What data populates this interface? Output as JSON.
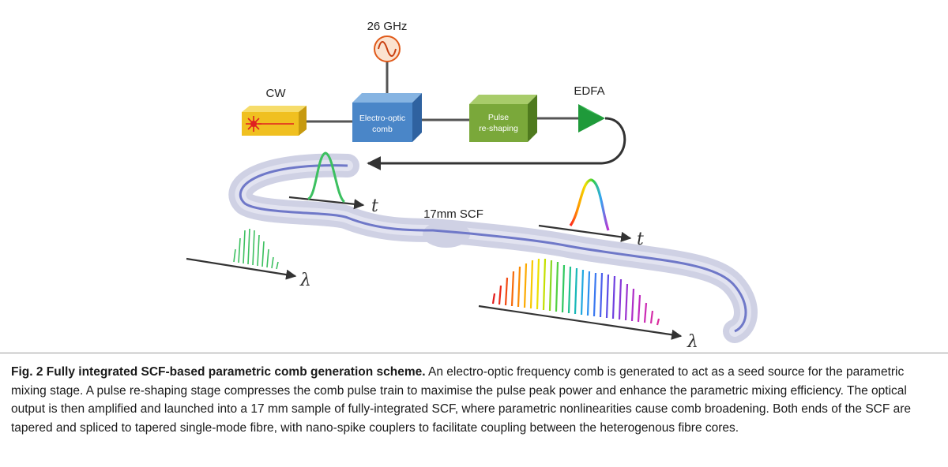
{
  "diagram": {
    "labels": {
      "rf_source": "26 GHz",
      "cw": "CW",
      "eo_comb_line1": "Electro-optic",
      "eo_comb_line2": "comb",
      "pulse_line1": "Pulse",
      "pulse_line2": "re-shaping",
      "edfa": "EDFA",
      "scf": "17mm SCF",
      "time_axis": "t",
      "wavelength_axis": "λ"
    },
    "colors": {
      "cw_box": "#f0c020",
      "eo_box": "#4a86c8",
      "pulse_box": "#7aa83a",
      "edfa": "#1f9a3a",
      "fibre_cladding": "#c9cbe0",
      "fibre_core": "#6f78c8",
      "input_pulse": "#3cc060"
    }
  },
  "caption": {
    "title": "Fig. 2 Fully integrated SCF-based parametric comb generation scheme.",
    "body": " An electro-optic frequency comb is generated to act as a seed source for the parametric mixing stage. A pulse re-shaping stage compresses the comb pulse train to maximise the pulse peak power and enhance the parametric mixing efficiency. The optical output is then amplified and launched into a 17 mm sample of fully-integrated SCF, where parametric nonlinearities cause comb broadening. Both ends of the SCF are tapered and spliced to tapered single-mode fibre, with nano-spike couplers to facilitate coupling between the heterogenous fibre cores."
  }
}
